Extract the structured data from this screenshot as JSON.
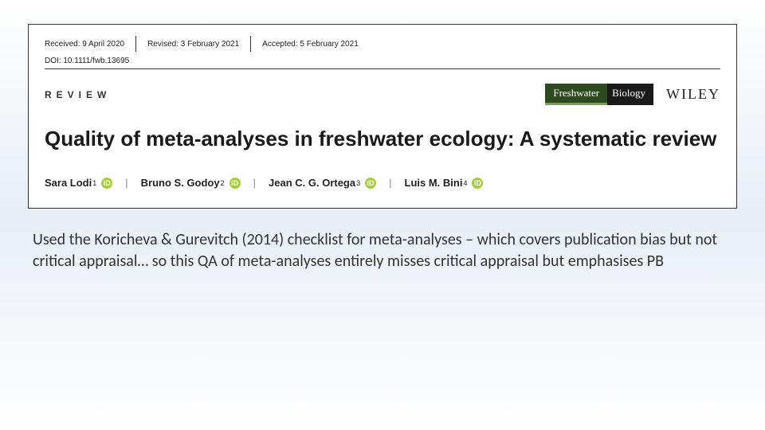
{
  "meta": {
    "received_label": "Received:",
    "received_value": "9 April 2020",
    "revised_label": "Revised:",
    "revised_value": "3 February 2021",
    "accepted_label": "Accepted:",
    "accepted_value": "5 February 2021",
    "doi_label": "DOI:",
    "doi_value": "10.1111/fwb.13695"
  },
  "article_type": "REVIEW",
  "journal": {
    "name_left": "Freshwater",
    "name_right": "Biology",
    "badge_bg_left": "#2d4a1f",
    "badge_bg_right": "#1a1a1a",
    "underline_color": "#7fa050"
  },
  "publisher": "WILEY",
  "title": "Quality of meta-analyses in freshwater ecology: A systematic review",
  "authors": [
    {
      "name": "Sara Lodi",
      "affil": "1"
    },
    {
      "name": "Bruno S. Godoy",
      "affil": "2"
    },
    {
      "name": "Jean C. G. Ortega",
      "affil": "3"
    },
    {
      "name": "Luis M. Bini",
      "affil": "4"
    }
  ],
  "orcid_glyph": "iD",
  "author_separator": "|",
  "caption": "Used the Koricheva & Gurevitch (2014) checklist for meta-analyses – which covers publication bias but not critical appraisal… so this QA of meta-analyses entirely misses critical appraisal but emphasises PB",
  "colors": {
    "page_bg_top": "#ffffff",
    "page_bg_mid": "#e8eef5",
    "box_border": "#333333",
    "orcid_bg": "#a6ce39",
    "text": "#1a1a1a"
  }
}
